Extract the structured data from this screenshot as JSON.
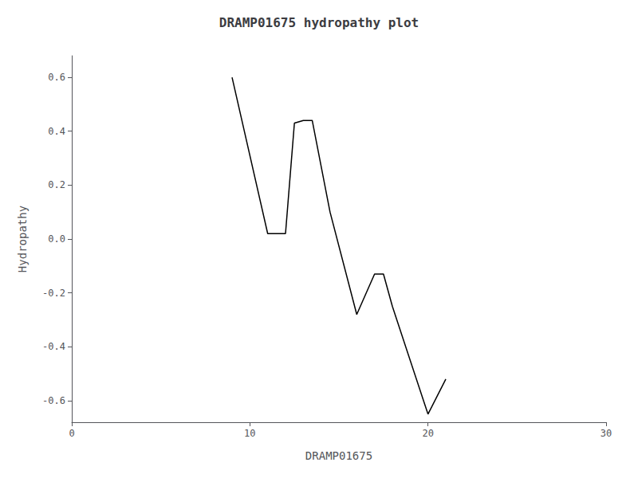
{
  "chart_data": {
    "type": "line",
    "title": "DRAMP01675 hydropathy plot",
    "xlabel": "DRAMP01675",
    "ylabel": "Hydropathy",
    "x": [
      9.0,
      11.0,
      12.0,
      12.5,
      13.0,
      13.5,
      14.5,
      16.0,
      17.0,
      17.5,
      18.0,
      20.0,
      21.0
    ],
    "values": [
      0.6,
      0.02,
      0.02,
      0.43,
      0.44,
      0.44,
      0.1,
      -0.28,
      -0.13,
      -0.13,
      -0.25,
      -0.65,
      -0.52
    ],
    "color": "#000000",
    "xlim": [
      0,
      30
    ],
    "xticks": [
      0,
      10,
      20,
      30
    ],
    "ylim": [
      -0.68,
      0.68
    ],
    "yticks": [
      -0.6,
      -0.4,
      -0.2,
      {
        "value": 0.0,
        "label": "0.0"
      },
      0.2,
      0.4,
      0.6
    ],
    "grid": false
  }
}
